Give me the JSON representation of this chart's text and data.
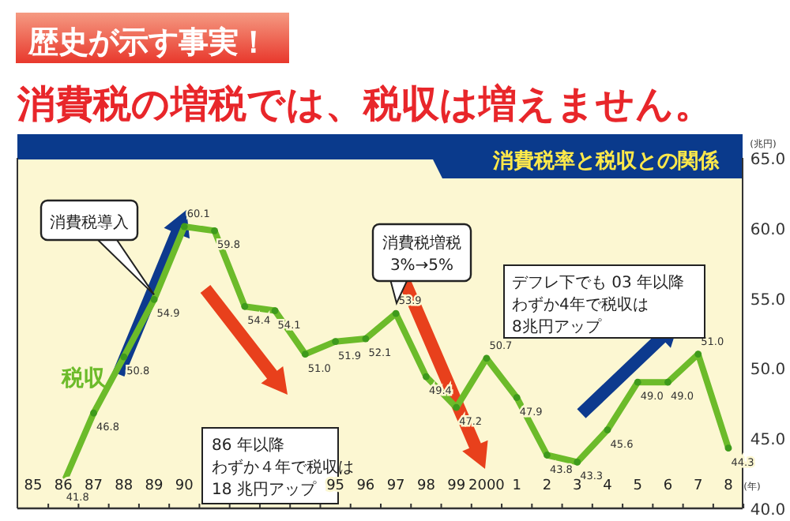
{
  "chart_data": {
    "type": "line",
    "title": "歴史が示す事実！",
    "subtitle": "消費税の増税では、税収は増えません。",
    "xlabel": "(年)",
    "ylabel": "(兆円)",
    "categories": [
      "85",
      "86",
      "87",
      "88",
      "89",
      "90",
      null,
      null,
      null,
      null,
      "95",
      "96",
      "97",
      "98",
      "99",
      "2000",
      "1",
      "2",
      "3",
      "4",
      "5",
      "6",
      "7",
      "8"
    ],
    "series": [
      {
        "name": "税収",
        "color": "#6cbb2a",
        "values": [
          null,
          41.8,
          46.8,
          50.8,
          54.9,
          60.1,
          59.8,
          54.4,
          54.1,
          51.0,
          51.9,
          52.1,
          53.9,
          49.4,
          47.2,
          50.7,
          47.9,
          43.8,
          43.3,
          45.6,
          49.0,
          49.0,
          51.0,
          44.3
        ],
        "value_labels": [
          null,
          "41.8",
          "46.8",
          "50.8",
          "54.9",
          "60.1",
          "59.8",
          "54.4",
          "54.1",
          "51.0",
          "51.9",
          "52.1",
          "53.9",
          "49.4",
          "47.2",
          "50.7",
          "47.9",
          "43.8",
          "43.3",
          "45.6",
          "49.0",
          "49.0",
          "51.0",
          "44.3"
        ]
      }
    ],
    "ylim": [
      40,
      65
    ],
    "yticks": [
      {
        "value": 40,
        "label": "40.0"
      },
      {
        "value": 45,
        "label": "45.0"
      },
      {
        "value": 50,
        "label": "50.0"
      },
      {
        "value": 55,
        "label": "55.0"
      },
      {
        "value": 60,
        "label": "60.0"
      },
      {
        "value": 65,
        "label": "65.0"
      }
    ],
    "marker": "circle",
    "legend": false,
    "annotations": [
      "消費税率と税収との関係",
      "消費税導入",
      "消費税増税\n3%→5%",
      "86 年以降わずか４年で税収は18 兆円アップ",
      "デフレ下でも 03 年以降わずか4年で税収は8兆円アップ"
    ]
  }
}
